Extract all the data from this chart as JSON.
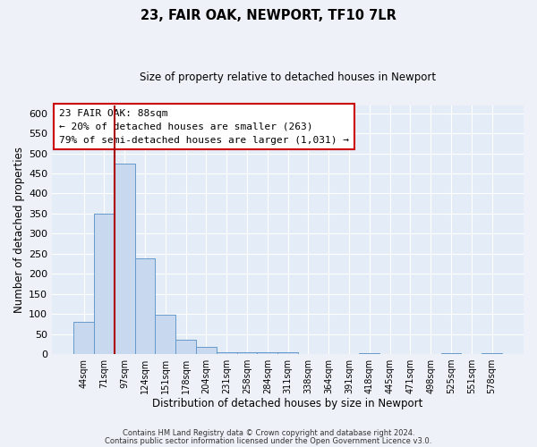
{
  "title": "23, FAIR OAK, NEWPORT, TF10 7LR",
  "subtitle": "Size of property relative to detached houses in Newport",
  "xlabel": "Distribution of detached houses by size in Newport",
  "ylabel": "Number of detached properties",
  "bar_labels": [
    "44sqm",
    "71sqm",
    "97sqm",
    "124sqm",
    "151sqm",
    "178sqm",
    "204sqm",
    "231sqm",
    "258sqm",
    "284sqm",
    "311sqm",
    "338sqm",
    "364sqm",
    "391sqm",
    "418sqm",
    "445sqm",
    "471sqm",
    "498sqm",
    "525sqm",
    "551sqm",
    "578sqm"
  ],
  "bar_values": [
    80,
    350,
    475,
    238,
    97,
    35,
    18,
    5,
    5,
    5,
    5,
    0,
    0,
    0,
    3,
    0,
    0,
    0,
    3,
    0,
    3
  ],
  "bar_color": "#c8d9ef",
  "bar_edge_color": "#6699cc",
  "vline_color": "#aa0000",
  "ylim": [
    0,
    620
  ],
  "yticks": [
    0,
    50,
    100,
    150,
    200,
    250,
    300,
    350,
    400,
    450,
    500,
    550,
    600
  ],
  "annotation_line1": "23 FAIR OAK: 88sqm",
  "annotation_line2": "← 20% of detached houses are smaller (263)",
  "annotation_line3": "79% of semi-detached houses are larger (1,031) →",
  "footer1": "Contains HM Land Registry data © Crown copyright and database right 2024.",
  "footer2": "Contains public sector information licensed under the Open Government Licence v3.0.",
  "bg_color": "#eef2f8",
  "plot_bg_color": "#e4ecf7"
}
